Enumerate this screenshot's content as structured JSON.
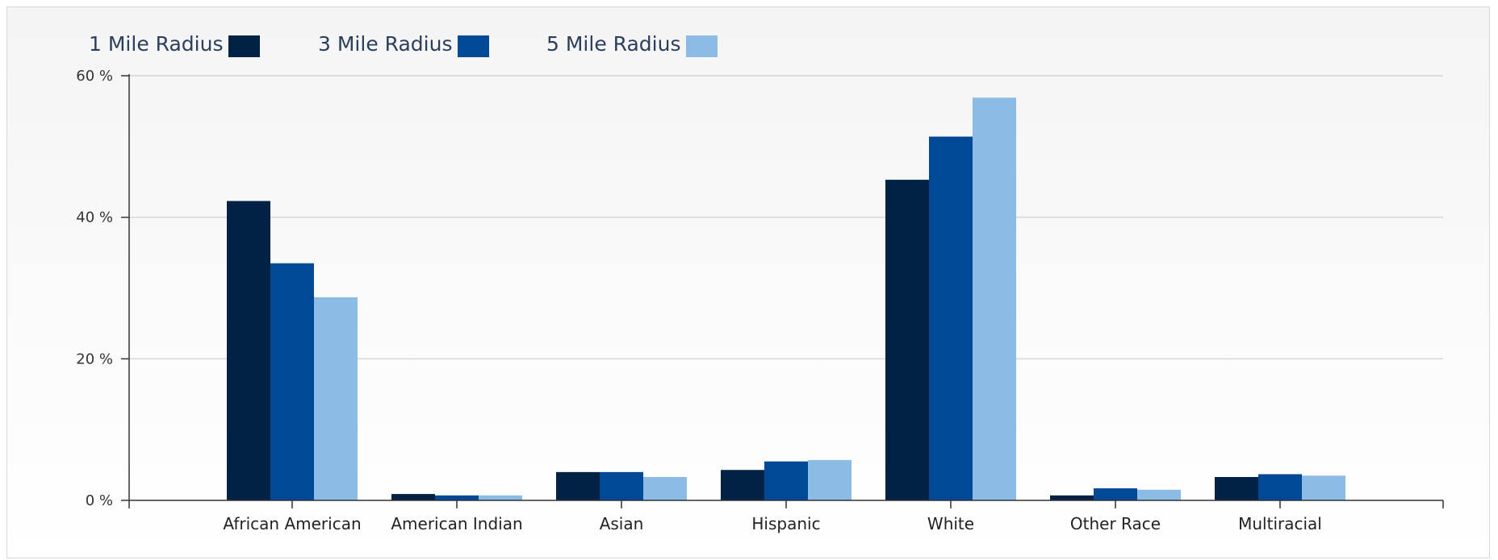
{
  "chart_data": {
    "type": "bar",
    "title": "",
    "xlabel": "",
    "ylabel": "",
    "ylim": [
      0,
      60
    ],
    "yticks": [
      0,
      20,
      40,
      60
    ],
    "ytick_suffix": " %",
    "grid": true,
    "legend_position": "top-left",
    "categories": [
      "African American",
      "American Indian",
      "Asian",
      "Hispanic",
      "White",
      "Other Race",
      "Multiracial"
    ],
    "series": [
      {
        "name": "1 Mile Radius",
        "color": "#012145",
        "values": [
          42.3,
          0.9,
          4.0,
          4.3,
          45.3,
          0.7,
          3.3
        ]
      },
      {
        "name": "3 Mile Radius",
        "color": "#014897",
        "values": [
          33.5,
          0.7,
          4.0,
          5.5,
          51.4,
          1.7,
          3.7
        ]
      },
      {
        "name": "5 Mile Radius",
        "color": "#8bbce6",
        "values": [
          28.7,
          0.7,
          3.3,
          5.7,
          56.9,
          1.5,
          3.5
        ]
      }
    ]
  }
}
